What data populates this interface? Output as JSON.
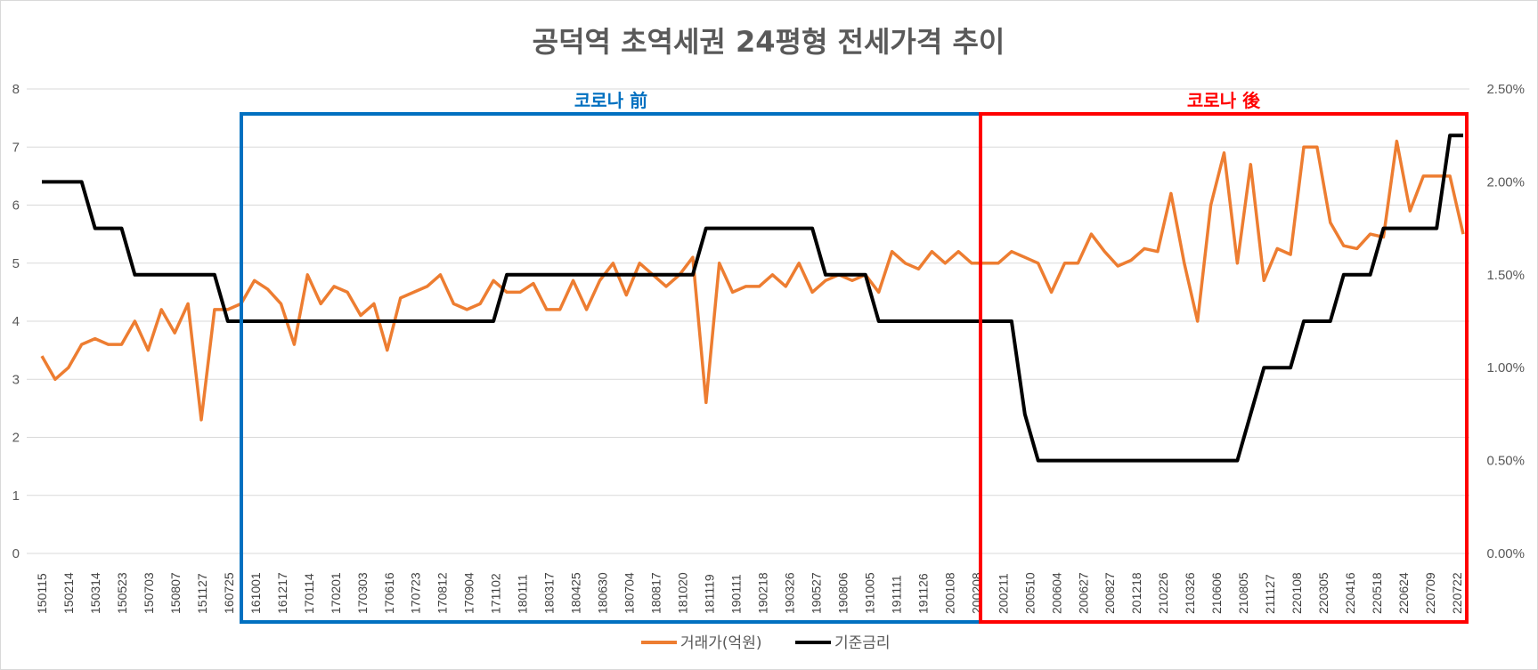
{
  "chart_data": {
    "type": "line",
    "title": "공덕역 초역세권 24평형 전세가격 추이",
    "y_left": {
      "lim": [
        0,
        8
      ],
      "ticks": [
        "0",
        "1",
        "2",
        "3",
        "4",
        "5",
        "6",
        "7",
        "8"
      ]
    },
    "y_right": {
      "lim": [
        0,
        2.5
      ],
      "ticks": [
        "0.00%",
        "0.50%",
        "1.00%",
        "1.50%",
        "2.00%",
        "2.50%"
      ]
    },
    "x_tick_labels": [
      "150115",
      "150214",
      "150314",
      "150523",
      "150703",
      "150807",
      "151127",
      "160725",
      "161001",
      "161217",
      "170114",
      "170201",
      "170303",
      "170616",
      "170723",
      "170812",
      "170904",
      "171102",
      "180111",
      "180317",
      "180425",
      "180630",
      "180704",
      "180817",
      "181020",
      "181119",
      "190111",
      "190218",
      "190326",
      "190527",
      "190806",
      "191005",
      "191111",
      "191126",
      "200108",
      "200208",
      "200211",
      "200510",
      "200604",
      "200627",
      "200827",
      "201218",
      "210226",
      "210326",
      "210606",
      "210805",
      "211127",
      "220108",
      "220305",
      "220416",
      "220518",
      "220624",
      "220709",
      "220722"
    ],
    "series": [
      {
        "name": "거래가(억원)",
        "color": "#ED7D31",
        "axis": "left",
        "values": [
          3.4,
          3.0,
          3.2,
          3.6,
          3.7,
          3.6,
          3.6,
          4.0,
          3.5,
          4.2,
          3.8,
          4.3,
          2.3,
          4.2,
          4.2,
          4.3,
          4.7,
          4.55,
          4.3,
          3.6,
          4.8,
          4.3,
          4.6,
          4.5,
          4.1,
          4.3,
          3.5,
          4.4,
          4.5,
          4.6,
          4.8,
          4.3,
          4.2,
          4.3,
          4.7,
          4.5,
          4.5,
          4.65,
          4.2,
          4.2,
          4.7,
          4.2,
          4.7,
          5.0,
          4.45,
          5.0,
          4.8,
          4.6,
          4.8,
          5.1,
          2.6,
          5.0,
          4.5,
          4.6,
          4.6,
          4.8,
          4.6,
          5.0,
          4.5,
          4.7,
          4.8,
          4.7,
          4.8,
          4.5,
          5.2,
          5.0,
          4.9,
          5.2,
          5.0,
          5.2,
          5.0,
          5.0,
          5.0,
          5.2,
          5.1,
          5.0,
          4.5,
          5.0,
          5.0,
          5.5,
          5.2,
          4.95,
          5.05,
          5.25,
          5.2,
          6.2,
          5.0,
          4.0,
          6.0,
          6.9,
          5.0,
          6.7,
          4.7,
          5.25,
          5.15,
          7.0,
          7.0,
          5.7,
          5.3,
          5.25,
          5.5,
          5.45,
          7.1,
          5.9,
          6.5,
          6.5,
          6.5,
          5.5
        ]
      },
      {
        "name": "기준금리",
        "color": "#000000",
        "axis": "right",
        "values": [
          2.0,
          2.0,
          2.0,
          2.0,
          1.75,
          1.75,
          1.75,
          1.5,
          1.5,
          1.5,
          1.5,
          1.5,
          1.5,
          1.5,
          1.25,
          1.25,
          1.25,
          1.25,
          1.25,
          1.25,
          1.25,
          1.25,
          1.25,
          1.25,
          1.25,
          1.25,
          1.25,
          1.25,
          1.25,
          1.25,
          1.25,
          1.25,
          1.25,
          1.25,
          1.25,
          1.5,
          1.5,
          1.5,
          1.5,
          1.5,
          1.5,
          1.5,
          1.5,
          1.5,
          1.5,
          1.5,
          1.5,
          1.5,
          1.5,
          1.5,
          1.75,
          1.75,
          1.75,
          1.75,
          1.75,
          1.75,
          1.75,
          1.75,
          1.75,
          1.5,
          1.5,
          1.5,
          1.5,
          1.25,
          1.25,
          1.25,
          1.25,
          1.25,
          1.25,
          1.25,
          1.25,
          1.25,
          1.25,
          1.25,
          0.75,
          0.5,
          0.5,
          0.5,
          0.5,
          0.5,
          0.5,
          0.5,
          0.5,
          0.5,
          0.5,
          0.5,
          0.5,
          0.5,
          0.5,
          0.5,
          0.5,
          0.75,
          1.0,
          1.0,
          1.0,
          1.25,
          1.25,
          1.25,
          1.5,
          1.5,
          1.5,
          1.75,
          1.75,
          1.75,
          1.75,
          1.75,
          2.25,
          2.25
        ]
      }
    ],
    "annotations": [
      {
        "label": "코로나 前",
        "color": "#0070C0",
        "from_point": 15,
        "to_point": 70
      },
      {
        "label": "코로나 後",
        "color": "#FF0000",
        "from_point": 71,
        "to_point": 106
      }
    ],
    "legend": {
      "position": "bottom"
    },
    "grid": true
  }
}
